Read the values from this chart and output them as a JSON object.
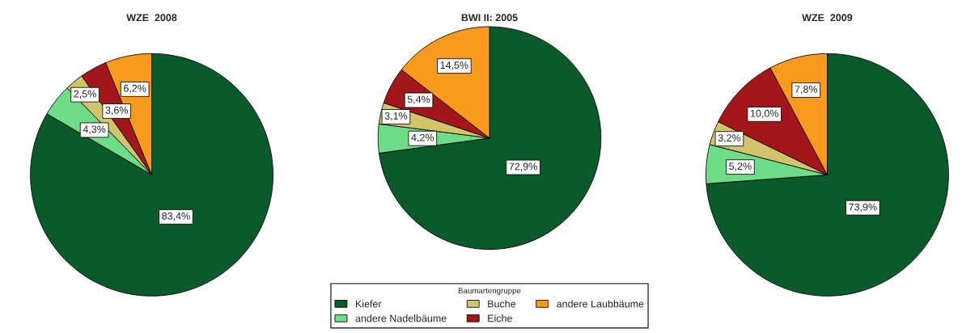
{
  "chart_data": [
    {
      "type": "pie",
      "title": "WZE  2008",
      "categories": [
        null,
        null,
        null,
        null,
        null
      ],
      "values": [
        83.4,
        4.3,
        2.5,
        3.6,
        6.2
      ],
      "value_labels": [
        "83,4%",
        "4,3%",
        "2,5%",
        "3,6%",
        "6,2%"
      ],
      "colors": [
        "#0b5a2c",
        "#6fdc87",
        "#d2c46a",
        "#a3171b",
        "#f79a1e"
      ],
      "legend": false
    },
    {
      "type": "pie",
      "title": "BWI II: 2005",
      "categories": [
        "Kiefer",
        "andere Nadelbäume",
        "Buche",
        "Eiche",
        "andere Laubbäume"
      ],
      "values": [
        72.9,
        4.2,
        3.1,
        5.4,
        14.5
      ],
      "value_labels": [
        "72,9%",
        "4,2%",
        "3,1%",
        "5,4%",
        "14,5%"
      ],
      "colors": [
        "#0b5a2c",
        "#6fdc87",
        "#d2c46a",
        "#a3171b",
        "#f79a1e"
      ],
      "legend": "bottom",
      "legend_title": "Baumartengruppe"
    },
    {
      "type": "pie",
      "title": "WZE  2009",
      "categories": [
        null,
        null,
        null,
        null,
        null
      ],
      "values": [
        73.9,
        5.2,
        3.2,
        10.0,
        7.8
      ],
      "value_labels": [
        "73,9%",
        "5,2%",
        "3,2%",
        "10,0%",
        "7,8%"
      ],
      "colors": [
        "#0b5a2c",
        "#6fdc87",
        "#d2c46a",
        "#a3171b",
        "#f79a1e"
      ],
      "legend": false
    }
  ]
}
